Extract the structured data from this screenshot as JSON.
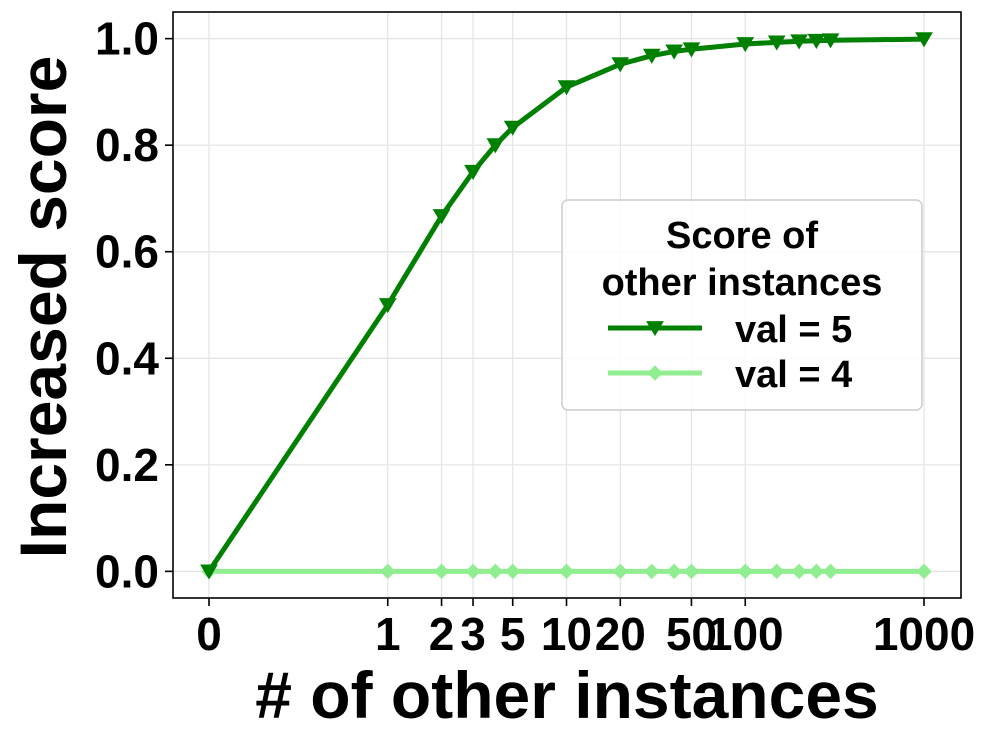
{
  "chart_data": {
    "type": "line",
    "title": "",
    "xlabel": "# of other instances",
    "ylabel": "Increased score",
    "x_scale": "symlog",
    "x_ticks": [
      0,
      1,
      2,
      3,
      5,
      10,
      20,
      50,
      100,
      1000
    ],
    "x_tick_labels": [
      "0",
      "1",
      "2",
      "3",
      "5",
      "10",
      "20",
      "50",
      "100",
      "1000"
    ],
    "y_ticks": [
      0.0,
      0.2,
      0.4,
      0.6,
      0.8,
      1.0
    ],
    "y_tick_labels": [
      "0.0",
      "0.2",
      "0.4",
      "0.6",
      "0.8",
      "1.0"
    ],
    "ylim": [
      -0.05,
      1.05
    ],
    "grid": true,
    "legend": {
      "title": "Score of\nother instances",
      "placement": "center-right"
    },
    "series": [
      {
        "name": "val = 5",
        "color": "#008000",
        "marker": "triangle-down",
        "x": [
          0,
          1,
          2,
          3,
          4,
          5,
          10,
          20,
          30,
          40,
          50,
          100,
          150,
          200,
          250,
          300,
          1000
        ],
        "y": [
          0.0,
          0.5,
          0.667,
          0.75,
          0.8,
          0.833,
          0.909,
          0.952,
          0.968,
          0.976,
          0.98,
          0.99,
          0.993,
          0.995,
          0.996,
          0.997,
          0.999
        ]
      },
      {
        "name": "val = 4",
        "color": "#90ee90",
        "marker": "diamond",
        "x": [
          0,
          1,
          2,
          3,
          4,
          5,
          10,
          20,
          30,
          40,
          50,
          100,
          150,
          200,
          250,
          300,
          1000
        ],
        "y": [
          0,
          0,
          0,
          0,
          0,
          0,
          0,
          0,
          0,
          0,
          0,
          0,
          0,
          0,
          0,
          0,
          0
        ]
      }
    ]
  }
}
